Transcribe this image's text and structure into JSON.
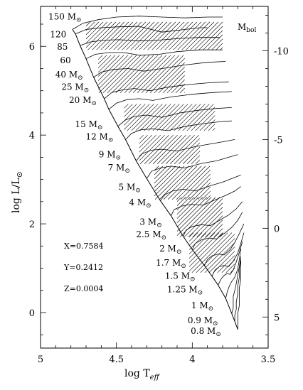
{
  "chart_data": {
    "type": "line",
    "subtitle": "M_bol",
    "xlabel": "log T_eff",
    "ylabel": "log L/L_⊙",
    "xlim": [
      5,
      3.5
    ],
    "ylim": [
      -0.8,
      6.9
    ],
    "x_ticks": [
      "5",
      "4.5",
      "4",
      "3.5"
    ],
    "y_ticks": [
      "0",
      "2",
      "4",
      "6"
    ],
    "right_axis": {
      "label": "M_bol",
      "ticks": [
        "-10",
        "-5",
        "0",
        "5"
      ],
      "tick_values": [
        -10,
        -5,
        0,
        5
      ]
    },
    "composition": [
      "X=0.7584",
      "Y=0.2412",
      "Z=0.0004"
    ],
    "grid": false,
    "series": [
      {
        "mass": "150",
        "x": [
          4.79,
          4.72,
          4.62,
          4.5,
          4.35,
          4.2,
          4.05,
          3.9,
          3.8
        ],
        "y": [
          6.38,
          6.52,
          6.6,
          6.66,
          6.68,
          6.66,
          6.64,
          6.66,
          6.66
        ]
      },
      {
        "mass": "120",
        "x": [
          4.77,
          4.7,
          4.6,
          4.48,
          4.35,
          4.2,
          4.05,
          3.95,
          3.9
        ],
        "y": [
          6.28,
          6.38,
          6.42,
          6.44,
          6.45,
          6.32,
          6.38,
          6.42,
          6.42
        ]
      },
      {
        "mass": "85",
        "x": [
          4.74,
          4.67,
          4.58,
          4.48,
          4.36,
          4.22,
          4.08,
          3.95,
          3.82
        ],
        "y": [
          6.02,
          6.1,
          6.14,
          6.15,
          6.12,
          6.14,
          6.18,
          6.2,
          6.2
        ]
      },
      {
        "mass": "60",
        "x": [
          4.7,
          4.64,
          4.55,
          4.45,
          4.35,
          4.22,
          4.1,
          3.95,
          3.8
        ],
        "y": [
          5.72,
          5.82,
          5.86,
          5.86,
          5.8,
          5.82,
          5.88,
          5.92,
          5.92
        ]
      },
      {
        "mass": "40",
        "x": [
          4.65,
          4.6,
          4.52,
          4.42,
          4.32,
          4.2,
          4.05,
          3.9,
          3.78
        ],
        "y": [
          5.3,
          5.42,
          5.48,
          5.5,
          5.44,
          5.5,
          5.58,
          5.64,
          5.66
        ]
      },
      {
        "mass": "25",
        "x": [
          4.58,
          4.53,
          4.46,
          4.38,
          4.28,
          4.16,
          4.02,
          3.88,
          3.76
        ],
        "y": [
          4.82,
          4.96,
          5.02,
          5.05,
          5.0,
          5.08,
          5.14,
          5.18,
          5.2
        ]
      },
      {
        "mass": "20",
        "x": [
          4.55,
          4.5,
          4.43,
          4.35,
          4.26,
          4.14,
          4.0,
          3.86,
          3.74
        ],
        "y": [
          4.58,
          4.72,
          4.8,
          4.82,
          4.78,
          4.86,
          4.92,
          4.96,
          4.98
        ]
      },
      {
        "mass": "15",
        "x": [
          4.49,
          4.44,
          4.38,
          4.3,
          4.2,
          4.08,
          3.96,
          3.84,
          3.74
        ],
        "y": [
          4.2,
          4.34,
          4.42,
          4.45,
          4.4,
          4.5,
          4.56,
          4.6,
          4.62
        ]
      },
      {
        "mass": "12",
        "x": [
          4.44,
          4.4,
          4.34,
          4.26,
          4.16,
          4.04,
          3.92,
          3.82,
          3.74
        ],
        "y": [
          3.9,
          4.04,
          4.12,
          4.14,
          4.1,
          4.2,
          4.26,
          4.3,
          4.32
        ]
      },
      {
        "mass": "9",
        "x": [
          4.37,
          4.33,
          4.27,
          4.2,
          4.1,
          3.98,
          3.88,
          3.78,
          3.72
        ],
        "y": [
          3.42,
          3.58,
          3.66,
          3.68,
          3.64,
          3.74,
          3.8,
          3.86,
          3.9
        ]
      },
      {
        "mass": "7",
        "x": [
          4.3,
          4.27,
          4.21,
          4.14,
          4.05,
          3.94,
          3.84,
          3.76,
          3.7
        ],
        "y": [
          3.02,
          3.18,
          3.26,
          3.3,
          3.26,
          3.36,
          3.42,
          3.5,
          3.56
        ]
      },
      {
        "mass": "5",
        "x": [
          4.21,
          4.18,
          4.13,
          4.06,
          3.98,
          3.88,
          3.8,
          3.74,
          3.68
        ],
        "y": [
          2.52,
          2.66,
          2.74,
          2.78,
          2.74,
          2.86,
          2.94,
          3.02,
          3.1
        ]
      },
      {
        "mass": "4",
        "x": [
          4.14,
          4.12,
          4.07,
          4.01,
          3.93,
          3.85,
          3.78,
          3.72,
          3.68
        ],
        "y": [
          2.18,
          2.32,
          2.4,
          2.44,
          2.42,
          2.54,
          2.64,
          2.74,
          2.84
        ]
      },
      {
        "mass": "3",
        "x": [
          4.06,
          4.04,
          4.0,
          3.94,
          3.88,
          3.82,
          3.76,
          3.71,
          3.67
        ],
        "y": [
          1.72,
          1.86,
          1.94,
          1.98,
          1.96,
          2.08,
          2.2,
          2.34,
          2.5
        ]
      },
      {
        "mass": "2.5",
        "x": [
          4.0,
          3.98,
          3.94,
          3.89,
          3.84,
          3.79,
          3.74,
          3.7,
          3.67
        ],
        "y": [
          1.42,
          1.56,
          1.64,
          1.68,
          1.66,
          1.78,
          1.92,
          2.08,
          2.26
        ]
      },
      {
        "mass": "2",
        "x": [
          3.92,
          3.9,
          3.87,
          3.83,
          3.79,
          3.75,
          3.72,
          3.69,
          3.66
        ],
        "y": [
          1.06,
          1.2,
          1.28,
          1.32,
          1.3,
          1.42,
          1.58,
          1.78,
          2.0
        ]
      },
      {
        "mass": "1.7",
        "x": [
          3.87,
          3.85,
          3.82,
          3.79,
          3.76,
          3.73,
          3.7,
          3.68,
          3.66
        ],
        "y": [
          0.82,
          0.96,
          1.04,
          1.06,
          1.04,
          1.16,
          1.34,
          1.56,
          1.8
        ]
      },
      {
        "mass": "1.5",
        "x": [
          3.83,
          3.81,
          3.79,
          3.77,
          3.75,
          3.73,
          3.71,
          3.69,
          3.67
        ],
        "y": [
          0.62,
          0.76,
          0.84,
          0.88,
          0.86,
          0.96,
          1.14,
          1.36,
          1.6
        ]
      },
      {
        "mass": "1.25",
        "x": [
          3.78,
          3.77,
          3.76,
          3.75,
          3.74,
          3.72,
          3.7,
          3.69,
          3.68
        ],
        "y": [
          0.32,
          0.46,
          0.56,
          0.64,
          0.7,
          0.8,
          0.98,
          1.2,
          1.44
        ]
      },
      {
        "mass": "1",
        "x": [
          3.74,
          3.73,
          3.73,
          3.73,
          3.72,
          3.71,
          3.7,
          3.69,
          3.68
        ],
        "y": [
          -0.02,
          0.1,
          0.22,
          0.36,
          0.5,
          0.66,
          0.84,
          1.04,
          1.26
        ]
      },
      {
        "mass": "0.9",
        "x": [
          3.72,
          3.72,
          3.71,
          3.71,
          3.7,
          3.7,
          3.69,
          3.69,
          3.68
        ],
        "y": [
          -0.2,
          -0.06,
          0.08,
          0.24,
          0.42,
          0.6,
          0.8,
          1.0,
          1.2
        ]
      },
      {
        "mass": "0.8",
        "x": [
          3.7,
          3.7,
          3.7,
          3.69,
          3.69,
          3.69,
          3.68,
          3.68,
          3.68
        ],
        "y": [
          -0.38,
          -0.2,
          -0.02,
          0.16,
          0.36,
          0.56,
          0.76,
          0.96,
          1.16
        ]
      }
    ],
    "zams": {
      "x": [
        3.7,
        3.72,
        3.74,
        3.78,
        3.83,
        3.87,
        3.92,
        4.0,
        4.06,
        4.14,
        4.21,
        4.3,
        4.37,
        4.44,
        4.49,
        4.55,
        4.58,
        4.65,
        4.7,
        4.74,
        4.77,
        4.79
      ],
      "y": [
        -0.38,
        -0.2,
        -0.02,
        0.32,
        0.62,
        0.82,
        1.06,
        1.42,
        1.72,
        2.18,
        2.52,
        3.02,
        3.42,
        3.9,
        4.2,
        4.58,
        4.82,
        5.3,
        5.72,
        6.02,
        6.28,
        6.38
      ]
    },
    "labels": [
      {
        "text": "150 M",
        "sun": true,
        "x": 4.73,
        "y": 6.6
      },
      {
        "text": "120",
        "sun": false,
        "x": 4.83,
        "y": 6.2
      },
      {
        "text": "85",
        "sun": false,
        "x": 4.82,
        "y": 5.92
      },
      {
        "text": "60",
        "sun": false,
        "x": 4.8,
        "y": 5.62
      },
      {
        "text": "40 M",
        "sun": true,
        "x": 4.72,
        "y": 5.3
      },
      {
        "text": "25 M",
        "sun": true,
        "x": 4.68,
        "y": 5.02
      },
      {
        "text": "20 M",
        "sun": true,
        "x": 4.63,
        "y": 4.72
      },
      {
        "text": "15 M",
        "sun": true,
        "x": 4.59,
        "y": 4.18
      },
      {
        "text": "12 M",
        "sun": true,
        "x": 4.52,
        "y": 3.9
      },
      {
        "text": "9 M",
        "sun": true,
        "x": 4.47,
        "y": 3.5
      },
      {
        "text": "7 M",
        "sun": true,
        "x": 4.41,
        "y": 3.2
      },
      {
        "text": "5 M",
        "sun": true,
        "x": 4.34,
        "y": 2.76
      },
      {
        "text": "4 M",
        "sun": true,
        "x": 4.27,
        "y": 2.42
      },
      {
        "text": "3 M",
        "sun": true,
        "x": 4.2,
        "y": 1.98
      },
      {
        "text": "2.5 M",
        "sun": true,
        "x": 4.17,
        "y": 1.7
      },
      {
        "text": "2 M",
        "sun": true,
        "x": 4.07,
        "y": 1.38
      },
      {
        "text": "1.7 M",
        "sun": true,
        "x": 4.04,
        "y": 1.06
      },
      {
        "text": "1.5 M",
        "sun": true,
        "x": 3.98,
        "y": 0.76
      },
      {
        "text": "1.25 M",
        "sun": true,
        "x": 3.93,
        "y": 0.46
      },
      {
        "text": "1  M",
        "sun": true,
        "x": 3.86,
        "y": 0.1
      },
      {
        "text": "0.9 M",
        "sun": true,
        "x": 3.83,
        "y": -0.24
      },
      {
        "text": "0.8 M",
        "sun": true,
        "x": 3.81,
        "y": -0.48
      }
    ]
  }
}
